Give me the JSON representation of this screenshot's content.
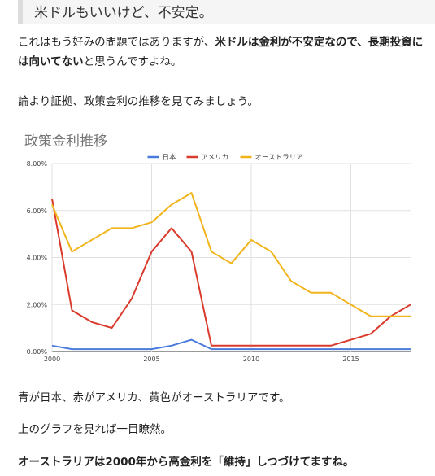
{
  "heading": "米ドルもいいけど、不安定。",
  "para1": {
    "part1": "これはもう好みの問題ではありますが、",
    "bold1": "米ドルは金利が不安定なので、長期投資には向いてない",
    "part2": "と思うんですよね。"
  },
  "para2": "論より証拠、政策金利の推移を見てみましょう。",
  "para3": "青が日本、赤がアメリカ、黄色がオーストラリアです。",
  "para4": "上のグラフを見れば一目瞭然。",
  "para5": "オーストラリアは2000年から高金利を「維持」しつづけてますね。",
  "chart_data": {
    "type": "line",
    "title": "政策金利推移",
    "xlabel": "",
    "ylabel": "",
    "x": [
      2000,
      2001,
      2002,
      2003,
      2004,
      2005,
      2006,
      2007,
      2008,
      2009,
      2010,
      2011,
      2012,
      2013,
      2014,
      2015,
      2016,
      2017,
      2018
    ],
    "xlim": [
      2000,
      2018
    ],
    "ylim": [
      0,
      8
    ],
    "xticks": [
      "2000",
      "2005",
      "2010",
      "2015"
    ],
    "xtick_values": [
      2000,
      2005,
      2010,
      2015
    ],
    "yticks": [
      "0.00%",
      "2.00%",
      "4.00%",
      "6.00%",
      "8.00%"
    ],
    "ytick_values": [
      0,
      2,
      4,
      6,
      8
    ],
    "grid": true,
    "legend_position": "top",
    "series": [
      {
        "name": "日本",
        "color": "#4a7bdc",
        "values": [
          0.25,
          0.1,
          0.1,
          0.1,
          0.1,
          0.1,
          0.25,
          0.5,
          0.1,
          0.1,
          0.1,
          0.1,
          0.1,
          0.1,
          0.1,
          0.1,
          0.1,
          0.1,
          0.1
        ]
      },
      {
        "name": "アメリカ",
        "color": "#d93a2b",
        "values": [
          6.5,
          1.75,
          1.25,
          1.0,
          2.25,
          4.25,
          5.25,
          4.25,
          0.25,
          0.25,
          0.25,
          0.25,
          0.25,
          0.25,
          0.25,
          0.5,
          0.75,
          1.5,
          2.0
        ]
      },
      {
        "name": "オーストラリア",
        "color": "#f2b41b",
        "values": [
          6.25,
          4.25,
          4.75,
          5.25,
          5.25,
          5.5,
          6.25,
          6.75,
          4.25,
          3.75,
          4.75,
          4.25,
          3.0,
          2.5,
          2.5,
          2.0,
          1.5,
          1.5,
          1.5
        ]
      }
    ]
  }
}
